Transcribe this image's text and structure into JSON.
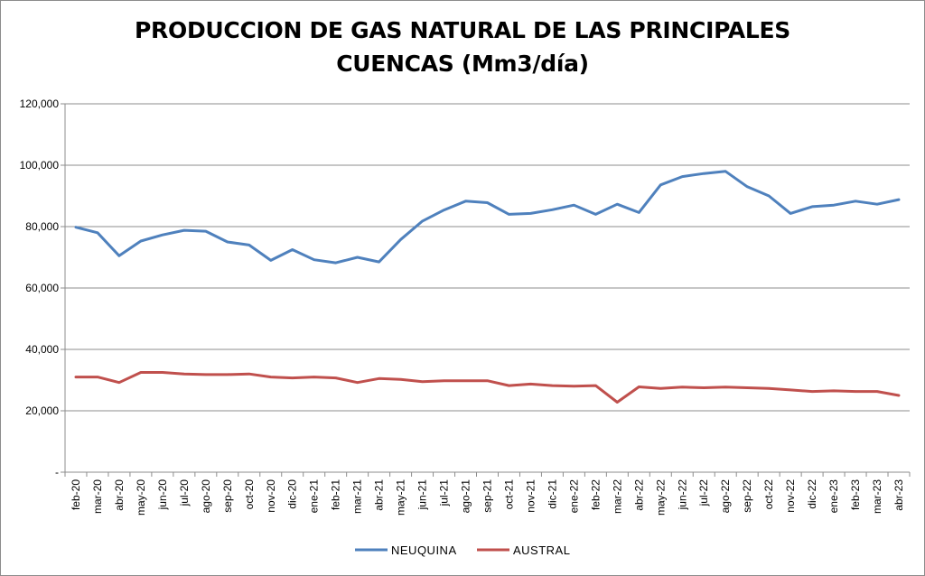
{
  "chart_data": {
    "type": "line",
    "title": "PRODUCCION DE GAS NATURAL DE LAS PRINCIPALES\nCUENCAS (Mm3/día)",
    "x": [
      "feb-20",
      "mar-20",
      "abr-20",
      "may-20",
      "jun-20",
      "jul-20",
      "ago-20",
      "sep-20",
      "oct-20",
      "nov-20",
      "dic-20",
      "ene-21",
      "feb-21",
      "mar-21",
      "abr-21",
      "may-21",
      "jun-21",
      "jul-21",
      "ago-21",
      "sep-21",
      "oct-21",
      "nov-21",
      "dic-21",
      "ene-22",
      "feb-22",
      "mar-22",
      "abr-22",
      "may-22",
      "jun-22",
      "jul-22",
      "ago-22",
      "sep-22",
      "oct-22",
      "nov-22",
      "dic-22",
      "ene-23",
      "feb-23",
      "mar-23",
      "abr-23"
    ],
    "ylim": [
      0,
      120000
    ],
    "yticks": [
      0,
      20000,
      40000,
      60000,
      80000,
      100000,
      120000
    ],
    "ytick_labels": [
      "-",
      "20,000",
      "40,000",
      "60,000",
      "80,000",
      "100,000",
      "120,000"
    ],
    "grid": true,
    "legend_position": "bottom",
    "series": [
      {
        "name": "NEUQUINA",
        "color": "#4f81bd",
        "values": [
          79800,
          78000,
          70500,
          75300,
          77300,
          78800,
          78500,
          75000,
          74000,
          69000,
          72500,
          69200,
          68200,
          70000,
          68500,
          75800,
          81800,
          85400,
          88300,
          87800,
          84000,
          84300,
          85500,
          87000,
          84000,
          87300,
          84600,
          93600,
          96300,
          97300,
          98000,
          93000,
          90000,
          84300,
          86500,
          87000,
          88300,
          87300,
          88800
        ]
      },
      {
        "name": "AUSTRAL",
        "color": "#c0504d",
        "values": [
          31000,
          31000,
          29200,
          32500,
          32500,
          32000,
          31800,
          31800,
          32000,
          31000,
          30700,
          31000,
          30700,
          29200,
          30500,
          30200,
          29500,
          29800,
          29800,
          29800,
          28200,
          28700,
          28200,
          28000,
          28200,
          22800,
          27800,
          27300,
          27700,
          27500,
          27700,
          27500,
          27300,
          26800,
          26300,
          26500,
          26300,
          26300,
          25000
        ]
      }
    ]
  }
}
